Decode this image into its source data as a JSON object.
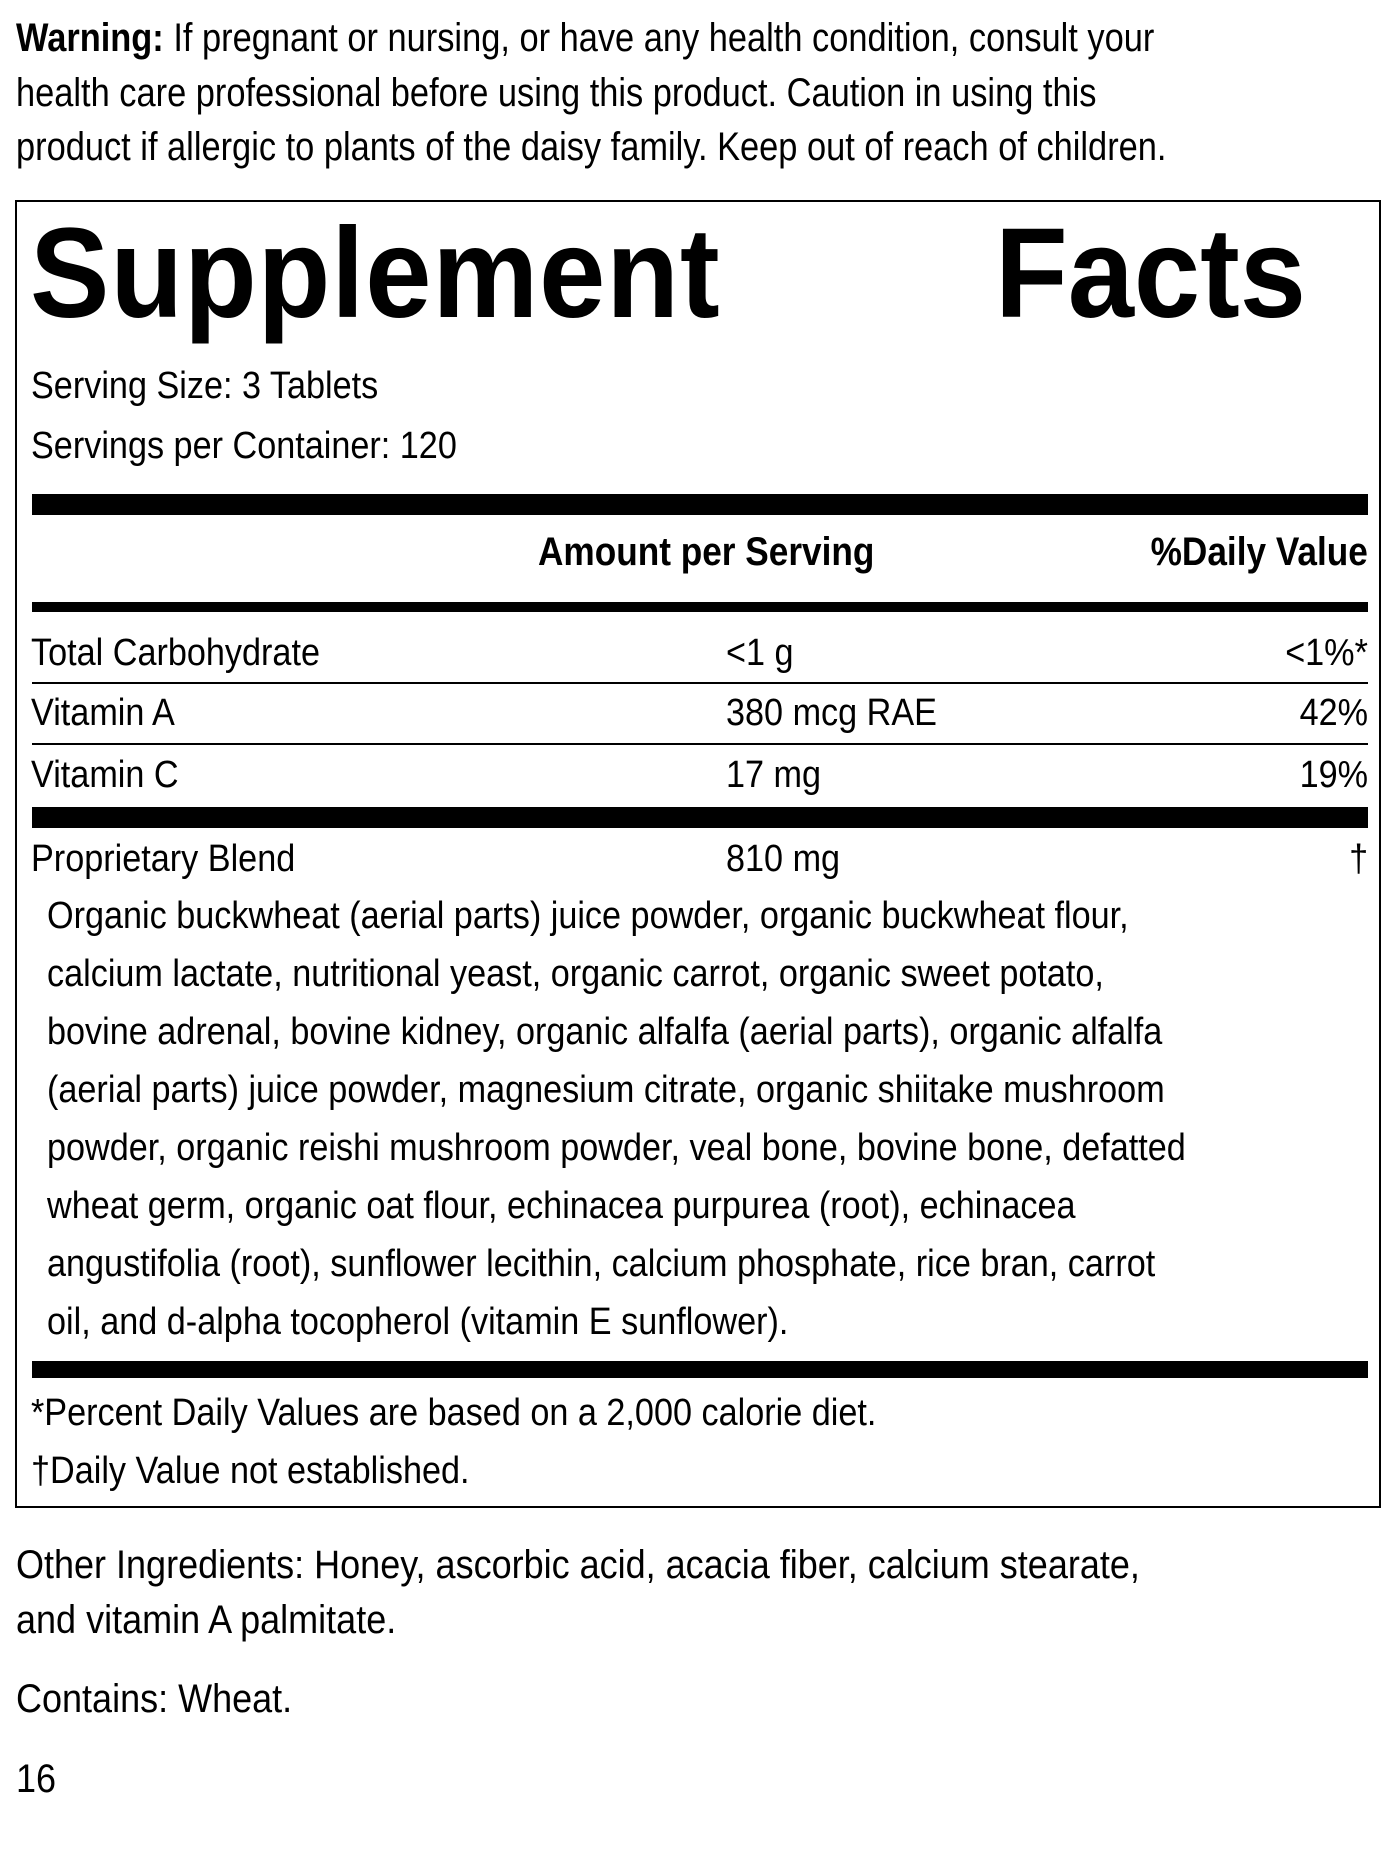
{
  "warning": {
    "label": "Warning:",
    "lines": [
      " If pregnant or nursing, or have any health condition, consult your",
      "health care professional before using this product. Caution in using this",
      "product if allergic to plants of the daisy family. Keep out of reach of children."
    ]
  },
  "facts": {
    "title_word1": "Supplement",
    "title_word2": "Facts",
    "serving_size": "Serving Size: 3 Tablets",
    "servings_per_container": "Servings per Container: 120",
    "header_amount": "Amount per Serving",
    "header_dv": "%Daily Value",
    "rows": [
      {
        "name": "Total Carbohydrate",
        "amount": "<1 g",
        "dv": "<1%*"
      },
      {
        "name": "Vitamin A",
        "amount": "380 mcg RAE",
        "dv": "42%"
      },
      {
        "name": "Vitamin C",
        "amount": "17 mg",
        "dv": "19%"
      },
      {
        "name": "Proprietary Blend",
        "amount": "810 mg",
        "dv": "†"
      }
    ],
    "blend_lines": [
      "Organic buckwheat (aerial parts) juice powder, organic buckwheat flour,",
      "calcium lactate, nutritional yeast, organic carrot, organic sweet potato,",
      "bovine adrenal, bovine kidney, organic alfalfa (aerial parts), organic alfalfa",
      "(aerial parts) juice powder, magnesium citrate, organic shiitake mushroom",
      "powder, organic reishi mushroom powder, veal bone, bovine bone, defatted",
      "wheat germ, organic oat flour, echinacea purpurea (root), echinacea",
      "angustifolia (root), sunflower lecithin, calcium phosphate, rice bran, carrot",
      "oil, and d-alpha tocopherol (vitamin E sunflower)."
    ],
    "footnote1": "*Percent Daily Values are based on a 2,000 calorie diet.",
    "footnote2": "†Daily Value not established."
  },
  "other_ingredients": [
    "Other Ingredients: Honey, ascorbic acid, acacia fiber, calcium stearate,",
    "and vitamin A palmitate."
  ],
  "contains": "Contains: Wheat.",
  "page_number": "16"
}
